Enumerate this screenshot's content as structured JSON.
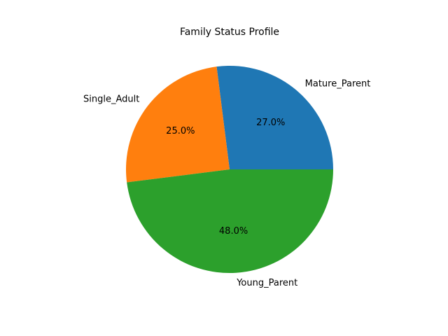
{
  "chart_data": {
    "type": "pie",
    "title": "Family Status Profile",
    "categories": [
      "Mature_Parent",
      "Single_Adult",
      "Young_Parent"
    ],
    "values": [
      27.0,
      25.0,
      48.0
    ],
    "percent_labels": [
      "27.0%",
      "25.0%",
      "48.0%"
    ],
    "colors": [
      "#1f77b4",
      "#ff7f0e",
      "#2ca02c"
    ],
    "start_angle_deg": 0,
    "direction": "counterclockwise",
    "legend": "none"
  }
}
